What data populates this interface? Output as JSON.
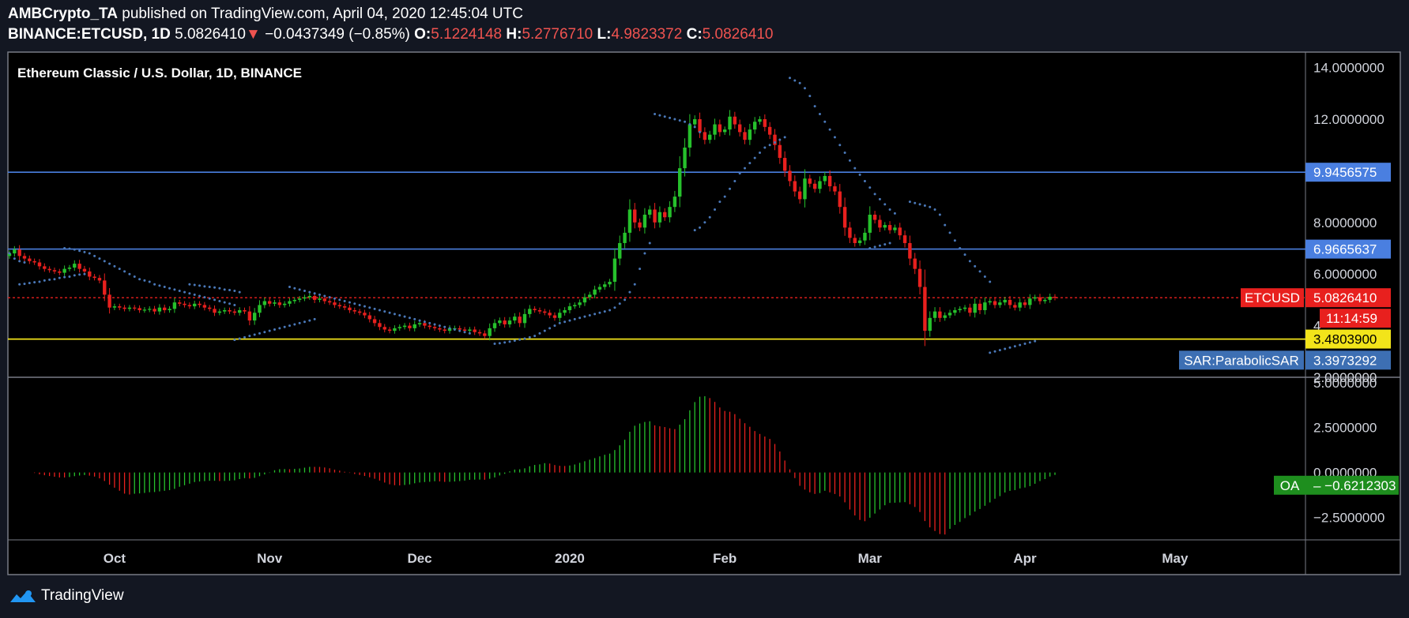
{
  "header": {
    "publisher": "AMBCrypto_TA",
    "published_text": "published on TradingView.com, April 04, 2020 12:45:04 UTC",
    "symbol": "BINANCE:ETCUSD, 1D",
    "last": "5.0826410",
    "change_arrow": "▼",
    "change": "−0.0437349 (−0.85%)",
    "o_label": "O:",
    "o_value": "5.1224148",
    "h_label": "H:",
    "h_value": "5.2776710",
    "l_label": "L:",
    "l_value": "4.9823372",
    "c_label": "C:",
    "c_value": "5.0826410"
  },
  "footer": {
    "brand": "TradingView",
    "logo_icon": "tradingview-logo-icon"
  },
  "colors": {
    "background": "#000000",
    "page": "#131722",
    "up": "#26c12c",
    "down": "#e8201e",
    "sar": "#4a78b8",
    "blue_line": "#4a7fe0",
    "yellow_line": "#f2e41a",
    "red_dotted": "#e8201e"
  },
  "chart_data": [
    {
      "type": "candlestick",
      "title": "Ethereum Classic / U.S. Dollar, 1D, BINANCE",
      "y_ticks": [
        "14.0000000",
        "12.0000000",
        "8.0000000",
        "6.0000000",
        "4",
        "2.0000000"
      ],
      "y_tick_values": [
        14,
        12,
        8,
        6,
        4,
        2
      ],
      "ylim": [
        2.0,
        14.6
      ],
      "x_labels": [
        "Oct",
        "Nov",
        "Dec",
        "2020",
        "Feb",
        "Mar",
        "Apr",
        "May"
      ],
      "x_label_day_index": [
        21,
        52,
        82,
        112,
        143,
        172,
        203,
        233
      ],
      "horizontal_levels": [
        {
          "value": 9.9456575,
          "label": "9.9456575",
          "kind": "resistance"
        },
        {
          "value": 6.9665637,
          "label": "6.9665637",
          "kind": "resistance"
        },
        {
          "value": 3.48039,
          "label": "3.4803900",
          "kind": "support"
        },
        {
          "value": 5.082641,
          "label": "5.0826410",
          "kind": "last_price",
          "tag": "ETCUSD",
          "countdown": "11:14:59"
        }
      ],
      "sar_label": {
        "tag": "SAR:ParabolicSAR",
        "value": "3.3973292",
        "y": 3.3973292
      },
      "closes": [
        6.8,
        6.95,
        6.7,
        6.6,
        6.5,
        6.45,
        6.3,
        6.2,
        6.15,
        6.1,
        6.05,
        6.2,
        6.25,
        6.4,
        6.2,
        6.1,
        5.9,
        5.85,
        5.75,
        5.2,
        4.7,
        4.75,
        4.7,
        4.65,
        4.7,
        4.68,
        4.6,
        4.62,
        4.65,
        4.55,
        4.7,
        4.6,
        4.65,
        4.9,
        4.85,
        4.8,
        4.75,
        4.85,
        4.8,
        4.7,
        4.65,
        4.5,
        4.55,
        4.6,
        4.55,
        4.5,
        4.6,
        4.55,
        4.2,
        4.5,
        4.8,
        4.95,
        4.85,
        4.9,
        4.8,
        4.85,
        4.95,
        5.0,
        5.05,
        5.1,
        5.15,
        5.0,
        5.05,
        4.95,
        4.9,
        4.8,
        4.75,
        4.7,
        4.6,
        4.55,
        4.5,
        4.4,
        4.25,
        4.1,
        3.95,
        3.85,
        3.8,
        3.9,
        3.95,
        4.0,
        3.9,
        4.05,
        4.1,
        4.0,
        3.95,
        3.9,
        3.85,
        3.8,
        3.9,
        3.9,
        3.85,
        3.8,
        3.85,
        3.75,
        3.7,
        3.6,
        3.9,
        4.1,
        4.2,
        4.05,
        4.2,
        4.35,
        4.1,
        4.45,
        4.65,
        4.6,
        4.55,
        4.5,
        4.4,
        4.3,
        4.5,
        4.6,
        4.75,
        4.8,
        4.9,
        5.1,
        5.2,
        5.4,
        5.5,
        5.6,
        5.7,
        6.6,
        7.2,
        7.6,
        8.5,
        8.0,
        7.8,
        8.3,
        8.5,
        8.0,
        8.4,
        8.2,
        8.6,
        9.0,
        10.1,
        10.9,
        11.8,
        12.0,
        11.5,
        11.2,
        11.4,
        11.8,
        11.5,
        11.6,
        12.1,
        11.8,
        11.5,
        11.2,
        11.6,
        11.9,
        12.0,
        11.7,
        11.4,
        11.0,
        10.5,
        10.0,
        9.6,
        9.2,
        8.9,
        9.7,
        9.5,
        9.3,
        9.6,
        9.8,
        9.4,
        9.2,
        8.6,
        7.8,
        7.4,
        7.2,
        7.3,
        7.6,
        8.3,
        8.1,
        7.8,
        7.9,
        7.7,
        7.8,
        7.5,
        7.2,
        6.6,
        6.2,
        5.5,
        3.8,
        4.3,
        4.55,
        4.3,
        4.4,
        4.5,
        4.6,
        4.65,
        4.7,
        4.5,
        4.85,
        4.6,
        4.9,
        4.95,
        4.8,
        4.9,
        5.0,
        4.8,
        4.7,
        4.9,
        4.8,
        5.05,
        5.1,
        4.95,
        5.0,
        5.12,
        5.08
      ],
      "sar": [
        {
          "start_day": 0,
          "values": [
            6.8,
            6.6,
            6.5,
            6.45
          ]
        },
        {
          "start_day": 2,
          "values": [
            5.6,
            5.62,
            5.65,
            5.68,
            5.7,
            5.75,
            5.78,
            5.8,
            5.85,
            5.88,
            5.9,
            5.95,
            5.98,
            6.0
          ]
        },
        {
          "start_day": 11,
          "values": [
            7.0,
            6.98,
            6.95,
            6.9,
            6.85,
            6.8,
            6.7,
            6.6,
            6.5,
            6.4,
            6.3,
            6.2,
            6.1,
            6.0,
            5.9,
            5.8,
            5.75,
            5.7,
            5.6,
            5.55,
            5.5,
            5.45,
            5.4,
            5.35,
            5.3,
            5.25,
            5.2,
            5.15,
            5.1,
            5.05,
            5.0,
            4.95,
            4.9,
            4.85,
            4.8
          ]
        },
        {
          "start_day": 36,
          "values": [
            5.6,
            5.58,
            5.55,
            5.52,
            5.5,
            5.48,
            5.45,
            5.4,
            5.38,
            5.35,
            5.3
          ]
        },
        {
          "start_day": 45,
          "values": [
            3.45,
            3.5,
            3.55,
            3.6,
            3.65,
            3.7,
            3.75,
            3.8,
            3.85,
            3.9,
            3.95,
            4.0,
            4.05,
            4.1,
            4.15,
            4.2,
            4.25
          ]
        },
        {
          "start_day": 56,
          "values": [
            5.5,
            5.45,
            5.4,
            5.35,
            5.3,
            5.25,
            5.2,
            5.15,
            5.1,
            5.05,
            5.0,
            4.95,
            4.9,
            4.85,
            4.8,
            4.75,
            4.7,
            4.65,
            4.6,
            4.55,
            4.5,
            4.45,
            4.4,
            4.35,
            4.3,
            4.25,
            4.2,
            4.15,
            4.1,
            4.05,
            4.0,
            3.95,
            3.9,
            3.85,
            3.8,
            3.75,
            3.7
          ]
        },
        {
          "start_day": 97,
          "values": [
            3.3,
            3.32,
            3.35,
            3.38,
            3.42,
            3.46,
            3.5,
            3.55,
            3.6,
            3.7,
            3.8,
            3.9,
            4.0,
            4.1,
            4.15,
            4.2,
            4.25,
            4.3,
            4.35,
            4.4,
            4.45,
            4.5,
            4.55,
            4.6,
            4.7,
            4.85,
            5.0,
            5.3,
            5.6,
            6.2,
            6.8,
            7.2
          ]
        },
        {
          "start_day": 129,
          "values": [
            12.2,
            12.15,
            12.1,
            12.05,
            12.0,
            11.95,
            11.9,
            11.8,
            11.7,
            11.5
          ]
        },
        {
          "start_day": 137,
          "values": [
            7.7,
            7.8,
            8.0,
            8.2,
            8.5,
            8.8,
            9.0,
            9.3,
            9.6,
            9.9,
            10.1,
            10.3,
            10.5,
            10.7,
            10.9,
            11.0,
            11.1,
            11.2,
            11.3
          ]
        },
        {
          "start_day": 156,
          "values": [
            13.6,
            13.5,
            13.4,
            13.2,
            12.9,
            12.5,
            12.2,
            11.9,
            11.6,
            11.3,
            11.0,
            10.7,
            10.4,
            10.1,
            9.85,
            9.6,
            9.35,
            9.1,
            8.9,
            8.7,
            8.5,
            8.35
          ]
        },
        {
          "start_day": 172,
          "values": [
            7.0,
            7.05,
            7.1,
            7.15,
            7.2
          ]
        },
        {
          "start_day": 180,
          "values": [
            8.8,
            8.75,
            8.7,
            8.65,
            8.6,
            8.5,
            8.3,
            7.9,
            7.6,
            7.3,
            7.0,
            6.75,
            6.5,
            6.3,
            6.1,
            5.9,
            5.7
          ]
        },
        {
          "start_day": 196,
          "values": [
            2.95,
            3.0,
            3.05,
            3.1,
            3.15,
            3.2,
            3.25,
            3.3,
            3.35,
            3.4
          ]
        }
      ]
    },
    {
      "type": "bar",
      "name": "OA",
      "current_label": "OA",
      "current_value": "−0.6212303",
      "y_ticks": [
        "5.0000000",
        "2.5000000",
        "0.0000000",
        "−2.5000000"
      ],
      "y_tick_values": [
        5,
        2.5,
        0,
        -2.5
      ],
      "ylim": [
        -3.75,
        5.3
      ]
    }
  ]
}
